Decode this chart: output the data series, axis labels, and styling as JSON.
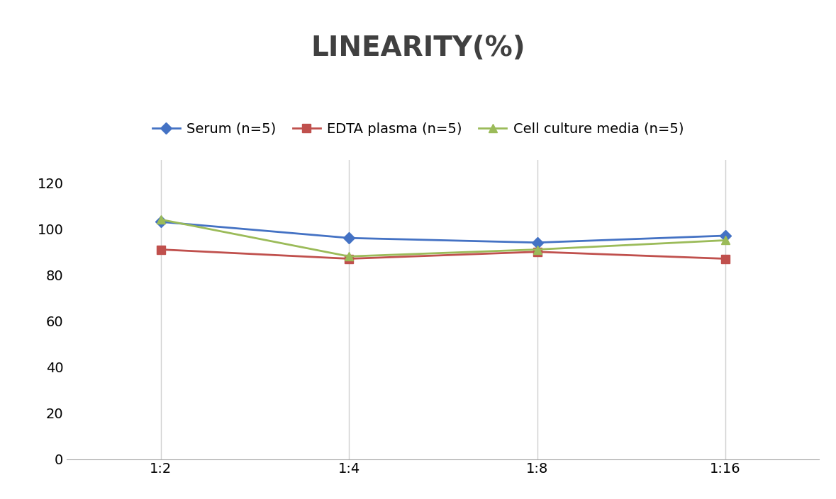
{
  "title": "LINEARITY(%)",
  "title_fontsize": 28,
  "title_fontweight": "bold",
  "title_color": "#404040",
  "x_labels": [
    "1:2",
    "1:4",
    "1:8",
    "1:16"
  ],
  "x_positions": [
    0,
    1,
    2,
    3
  ],
  "series": [
    {
      "label": "Serum (n=5)",
      "values": [
        103,
        96,
        94,
        97
      ],
      "color": "#4472C4",
      "marker": "D",
      "markersize": 8,
      "linewidth": 2
    },
    {
      "label": "EDTA plasma (n=5)",
      "values": [
        91,
        87,
        90,
        87
      ],
      "color": "#C0504D",
      "marker": "s",
      "markersize": 8,
      "linewidth": 2
    },
    {
      "label": "Cell culture media (n=5)",
      "values": [
        104,
        88,
        91,
        95
      ],
      "color": "#9BBB59",
      "marker": "^",
      "markersize": 9,
      "linewidth": 2
    }
  ],
  "ylim": [
    0,
    130
  ],
  "yticks": [
    0,
    20,
    40,
    60,
    80,
    100,
    120
  ],
  "grid_color": "#D0D0D0",
  "background_color": "#FFFFFF",
  "legend_fontsize": 14,
  "tick_fontsize": 14
}
